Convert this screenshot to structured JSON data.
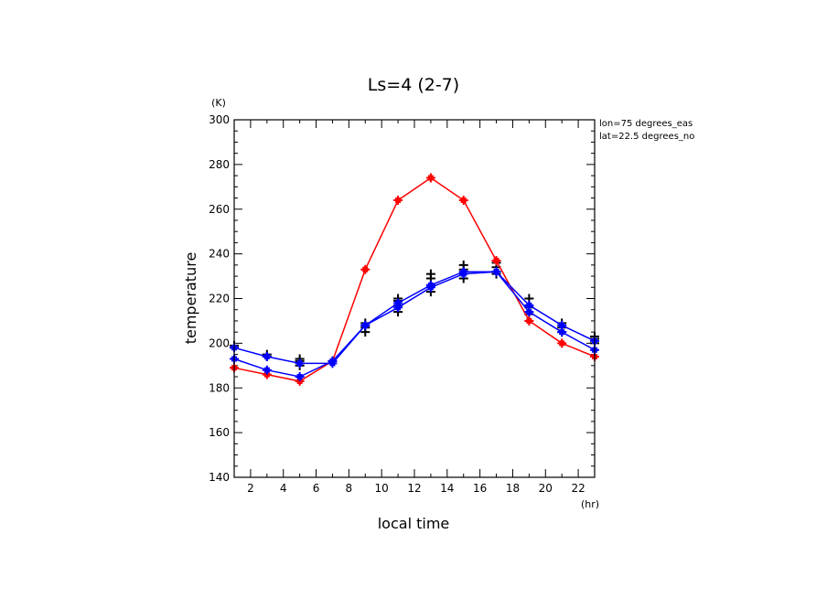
{
  "chart_data": {
    "type": "line",
    "title": "Ls=4 (2-7)",
    "xlabel": "local time",
    "ylabel": "temperature",
    "x_unit": "(hr)",
    "y_unit": "(K)",
    "xlim": [
      1,
      23
    ],
    "ylim": [
      140,
      300
    ],
    "x_ticks": [
      2,
      4,
      6,
      8,
      10,
      12,
      14,
      16,
      18,
      20,
      22
    ],
    "y_ticks": [
      140,
      160,
      180,
      200,
      220,
      240,
      260,
      280,
      300
    ],
    "annotations": [
      "lon=75 degrees_eas",
      "lat=22.5 degrees_no"
    ],
    "x": [
      1,
      3,
      5,
      7,
      9,
      11,
      13,
      15,
      17,
      19,
      21,
      23
    ],
    "series": [
      {
        "color": "#ff0000",
        "marker": "+",
        "values": [
          189,
          186,
          183,
          192,
          233,
          264,
          274,
          264,
          237,
          210,
          200,
          194
        ]
      },
      {
        "color": "#0000ff",
        "marker": "+",
        "values": [
          193,
          188,
          185,
          192,
          208,
          216,
          225,
          231,
          232,
          214,
          205,
          197
        ]
      },
      {
        "color": "#0000ff",
        "marker": "+",
        "values": [
          198,
          194,
          191,
          191,
          208,
          218,
          226,
          232,
          232,
          217,
          208,
          201
        ]
      }
    ],
    "scatter_series": [
      {
        "color": "#000000",
        "marker": "+",
        "points": [
          [
            1,
            198
          ],
          [
            1,
            199
          ],
          [
            3,
            194
          ],
          [
            3,
            195
          ],
          [
            5,
            190
          ],
          [
            5,
            192
          ],
          [
            5,
            193
          ],
          [
            7,
            192
          ],
          [
            9,
            205
          ],
          [
            9,
            207
          ],
          [
            9,
            209
          ],
          [
            11,
            214
          ],
          [
            11,
            217
          ],
          [
            11,
            219
          ],
          [
            11,
            220
          ],
          [
            13,
            223
          ],
          [
            13,
            226
          ],
          [
            13,
            229
          ],
          [
            13,
            231
          ],
          [
            15,
            229
          ],
          [
            15,
            233
          ],
          [
            15,
            235
          ],
          [
            17,
            231
          ],
          [
            17,
            234
          ],
          [
            17,
            236
          ],
          [
            19,
            213
          ],
          [
            19,
            216
          ],
          [
            19,
            220
          ],
          [
            21,
            205
          ],
          [
            21,
            207
          ],
          [
            21,
            209
          ],
          [
            23,
            200
          ],
          [
            23,
            202
          ],
          [
            23,
            203
          ]
        ]
      }
    ]
  }
}
